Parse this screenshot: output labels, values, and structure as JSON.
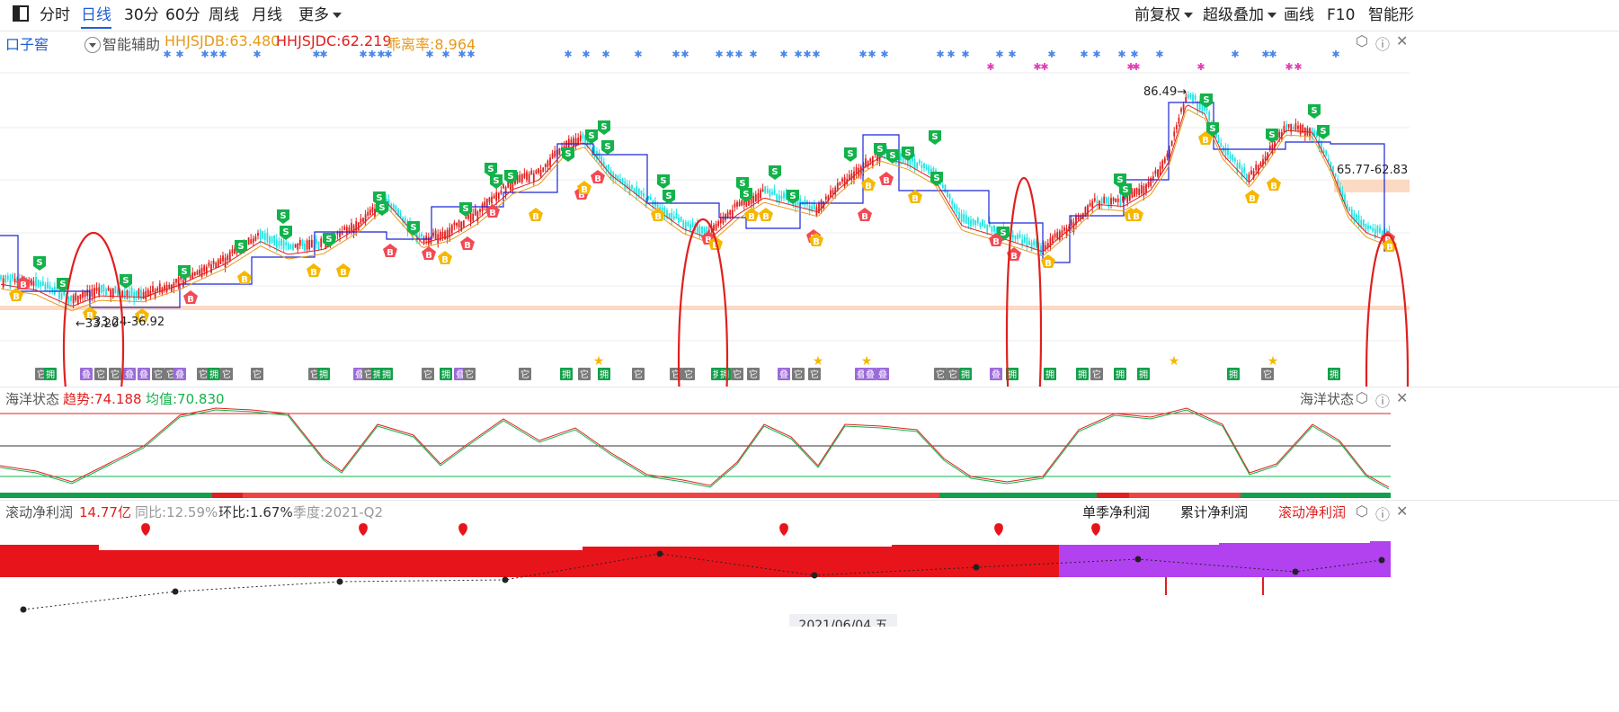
{
  "toolbar": {
    "tabs": [
      {
        "label": "分时",
        "active": false
      },
      {
        "label": "日线",
        "active": true
      },
      {
        "label": "30分",
        "active": false
      },
      {
        "label": "60分",
        "active": false
      },
      {
        "label": "周线",
        "active": false
      },
      {
        "label": "月线",
        "active": false
      },
      {
        "label": "更多",
        "active": false
      }
    ],
    "right": [
      "前复权",
      "超级叠加",
      "画线",
      "F10",
      "智能形"
    ]
  },
  "main_panel": {
    "stock_name": "口子窖",
    "assist_label": "智能辅助",
    "indicators": [
      {
        "text": "HHJSJDB:63.480",
        "color": "#e89a1a"
      },
      {
        "text": "HHJSJDC:62.219",
        "color": "#e0201e"
      },
      {
        "text": "乖离率:8.964",
        "color": "#e89a1a"
      }
    ],
    "high_label": "86.49→",
    "low_label": "←33.20",
    "range_label_left": "33.24-36.92",
    "range_label_right": "65.77-62.83",
    "tag_labels": [
      "它",
      "拥",
      "叠"
    ]
  },
  "ocean_panel": {
    "title": "海洋状态",
    "trend": "趋势:74.188",
    "mean": "均值:70.830",
    "right_title": "海洋状态"
  },
  "profit_panel": {
    "title": "滚动净利润",
    "value": "14.77亿",
    "yoy": "同比:12.59%",
    "qoq": "环比:1.67%",
    "season": "季度:2021-Q2",
    "tabs": [
      "单季净利润",
      "累计净利润",
      "滚动净利润"
    ]
  },
  "date_label": "2021/06/04 五",
  "chart_data": {
    "type": "line",
    "high": 86.49,
    "low": 33.2,
    "series": [
      {
        "name": "HHJSJDB",
        "last": 63.48
      },
      {
        "name": "HHJSJDC",
        "last": 62.219
      }
    ],
    "ocean_trend": 74.188,
    "ocean_mean": 70.83,
    "rolling_net_profit": "14.77亿"
  },
  "colors": {
    "up": "#e0201e",
    "down": "#1ee3e3",
    "accent": "#1f5fd6",
    "buy": "#f5b800",
    "sell": "#13b24b"
  }
}
